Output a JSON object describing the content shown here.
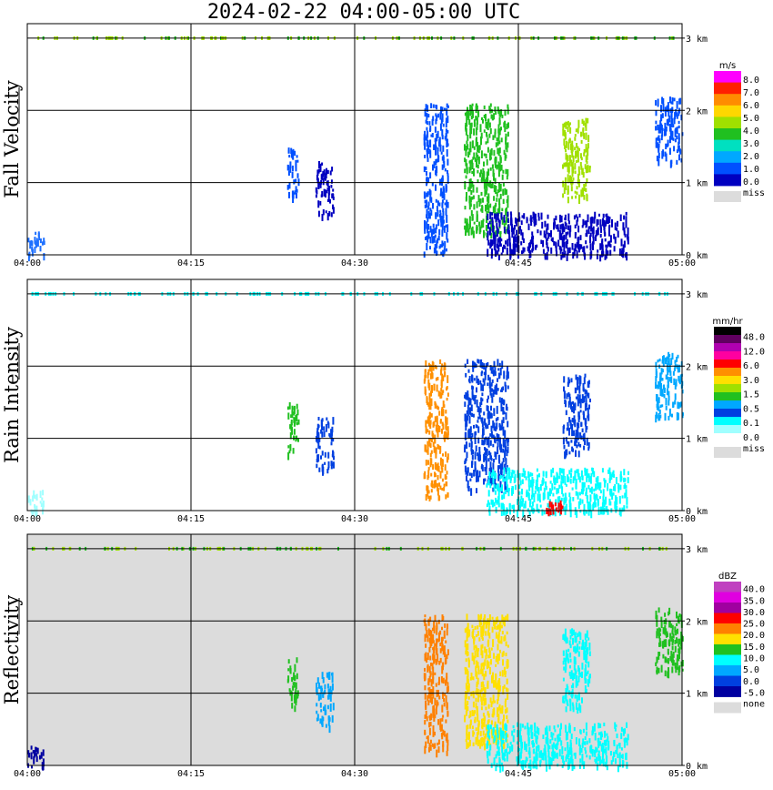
{
  "title": "2024-02-22  04:00-05:00 UTC",
  "chart_data": [
    {
      "type": "heatmap",
      "ylabel": "Fall Velocity",
      "x_tick_labels": [
        "04:00",
        "04:15",
        "04:30",
        "04:45",
        "05:00"
      ],
      "y_tick_labels": [
        "0 km",
        "1 km",
        "2 km",
        "3 km"
      ],
      "ylim": [
        0,
        3.2
      ],
      "xlim_minutes": [
        0,
        60
      ],
      "grid": true,
      "background": "#ffffff",
      "legend": {
        "unit": "m/s",
        "labels": [
          "8.0",
          "7.0",
          "6.0",
          "5.0",
          "4.0",
          "3.0",
          "2.0",
          "1.0",
          "0.0"
        ],
        "colors": [
          "#ff00ff",
          "#ff2000",
          "#ff8c00",
          "#ffd700",
          "#a0e000",
          "#20c020",
          "#00e0c0",
          "#00a8ff",
          "#0050ff",
          "#0000c0"
        ],
        "missing_label": "miss",
        "missing_color": "#dcdcdc"
      },
      "echoes": [
        {
          "t0": 0.0,
          "t1": 1.5,
          "h0": 0.0,
          "h1": 0.35,
          "c": "#1e70ff"
        },
        {
          "t0": 23.8,
          "t1": 24.8,
          "h0": 0.8,
          "h1": 1.5,
          "c": "#0050ff"
        },
        {
          "t0": 26.4,
          "t1": 28.0,
          "h0": 0.55,
          "h1": 1.3,
          "c": "#0000c0"
        },
        {
          "t0": 36.3,
          "t1": 38.5,
          "h0": 0.0,
          "h1": 2.1,
          "c": "#0050ff"
        },
        {
          "t0": 40.0,
          "t1": 44.0,
          "h0": 0.3,
          "h1": 2.1,
          "c": "#20c020"
        },
        {
          "t0": 42.0,
          "t1": 55.0,
          "h0": 0.0,
          "h1": 0.6,
          "c": "#0000c0"
        },
        {
          "t0": 49.0,
          "t1": 51.5,
          "h0": 0.8,
          "h1": 1.9,
          "c": "#a0e000"
        },
        {
          "t0": 57.5,
          "t1": 60.0,
          "h0": 1.3,
          "h1": 2.2,
          "c": "#0050ff"
        }
      ]
    },
    {
      "type": "heatmap",
      "ylabel": "Rain Intensity",
      "x_tick_labels": [
        "04:00",
        "04:15",
        "04:30",
        "04:45",
        "05:00"
      ],
      "y_tick_labels": [
        "0 km",
        "1 km",
        "2 km",
        "3 km"
      ],
      "ylim": [
        0,
        3.2
      ],
      "xlim_minutes": [
        0,
        60
      ],
      "grid": true,
      "background": "#ffffff",
      "legend": {
        "unit": "mm/hr",
        "labels": [
          "48.0",
          "12.0",
          "6.0",
          "3.0",
          "1.5",
          "0.5",
          "0.1",
          "0.0"
        ],
        "colors": [
          "#000000",
          "#600060",
          "#b000b0",
          "#ff00a0",
          "#ff0000",
          "#ff9000",
          "#ffe000",
          "#a0e000",
          "#20c020",
          "#00a8ff",
          "#0040e0",
          "#00ffff",
          "#a0ffff",
          "#ffffff"
        ],
        "missing_label": "miss",
        "missing_color": "#dcdcdc"
      },
      "echoes": [
        {
          "t0": 0.0,
          "t1": 1.5,
          "h0": 0.0,
          "h1": 0.3,
          "c": "#a0ffff"
        },
        {
          "t0": 23.8,
          "t1": 24.8,
          "h0": 0.8,
          "h1": 1.5,
          "c": "#20c020"
        },
        {
          "t0": 26.4,
          "t1": 28.0,
          "h0": 0.55,
          "h1": 1.3,
          "c": "#0040e0"
        },
        {
          "t0": 36.3,
          "t1": 38.5,
          "h0": 0.2,
          "h1": 2.1,
          "c": "#ff9000"
        },
        {
          "t0": 40.0,
          "t1": 44.0,
          "h0": 0.3,
          "h1": 2.1,
          "c": "#0040e0"
        },
        {
          "t0": 42.0,
          "t1": 55.0,
          "h0": 0.0,
          "h1": 0.6,
          "c": "#00ffff"
        },
        {
          "t0": 47.5,
          "t1": 49.0,
          "h0": 0.0,
          "h1": 0.15,
          "c": "#ff0000"
        },
        {
          "t0": 49.0,
          "t1": 51.5,
          "h0": 0.8,
          "h1": 1.9,
          "c": "#0040e0"
        },
        {
          "t0": 57.5,
          "t1": 60.0,
          "h0": 1.3,
          "h1": 2.2,
          "c": "#00a8ff"
        }
      ]
    },
    {
      "type": "heatmap",
      "ylabel": "Reflectivity",
      "x_tick_labels": [
        "04:00",
        "04:15",
        "04:30",
        "04:45",
        "05:00"
      ],
      "y_tick_labels": [
        "0 km",
        "1 km",
        "2 km",
        "3 km"
      ],
      "ylim": [
        0,
        3.2
      ],
      "xlim_minutes": [
        0,
        60
      ],
      "grid": true,
      "background": "#dcdcdc",
      "legend": {
        "unit": "dBZ",
        "labels": [
          "40.0",
          "35.0",
          "30.0",
          "25.0",
          "20.0",
          "15.0",
          "10.0",
          "5.0",
          "0.0",
          "-5.0"
        ],
        "colors": [
          "#c040c0",
          "#e000e0",
          "#a000a0",
          "#ff0000",
          "#ff8000",
          "#ffe000",
          "#20c020",
          "#00ffff",
          "#00a8ff",
          "#0040e0",
          "#0000a0"
        ],
        "missing_label": "none",
        "missing_color": "#dcdcdc"
      },
      "echoes": [
        {
          "t0": 0.0,
          "t1": 1.5,
          "h0": 0.0,
          "h1": 0.3,
          "c": "#0000a0"
        },
        {
          "t0": 23.8,
          "t1": 24.8,
          "h0": 0.8,
          "h1": 1.5,
          "c": "#20c020"
        },
        {
          "t0": 26.4,
          "t1": 28.0,
          "h0": 0.55,
          "h1": 1.3,
          "c": "#00a8ff"
        },
        {
          "t0": 36.3,
          "t1": 38.5,
          "h0": 0.2,
          "h1": 2.1,
          "c": "#ff8000"
        },
        {
          "t0": 40.0,
          "t1": 44.0,
          "h0": 0.3,
          "h1": 2.1,
          "c": "#ffe000"
        },
        {
          "t0": 42.0,
          "t1": 55.0,
          "h0": 0.0,
          "h1": 0.6,
          "c": "#00ffff"
        },
        {
          "t0": 49.0,
          "t1": 51.5,
          "h0": 0.8,
          "h1": 1.9,
          "c": "#00ffff"
        },
        {
          "t0": 57.5,
          "t1": 60.0,
          "h0": 1.3,
          "h1": 2.2,
          "c": "#20c020"
        }
      ]
    }
  ]
}
